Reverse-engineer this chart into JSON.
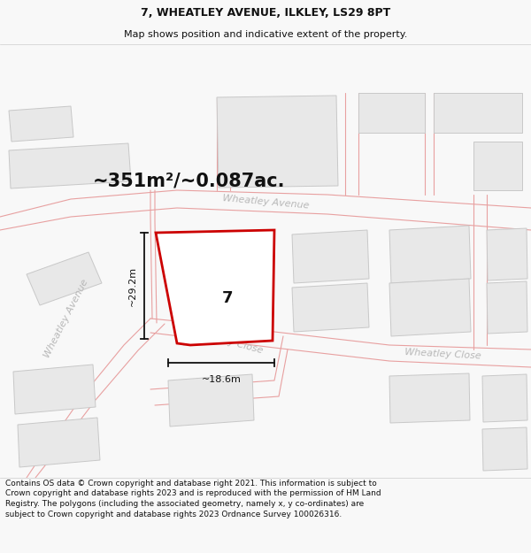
{
  "title_line1": "7, WHEATLEY AVENUE, ILKLEY, LS29 8PT",
  "title_line2": "Map shows position and indicative extent of the property.",
  "area_text": "~351m²/~0.087ac.",
  "property_number": "7",
  "dim_vertical": "~29.2m",
  "dim_horizontal": "~18.6m",
  "footer_text": "Contains OS data © Crown copyright and database right 2021. This information is subject to Crown copyright and database rights 2023 and is reproduced with the permission of HM Land Registry. The polygons (including the associated geometry, namely x, y co-ordinates) are subject to Crown copyright and database rights 2023 Ordnance Survey 100026316.",
  "bg_color": "#f8f8f8",
  "map_bg": "#f0eeee",
  "building_fill": "#e8e8e8",
  "building_edge": "#c8c8c8",
  "road_line_color": "#e8a0a0",
  "prop_fill": "#ffffff",
  "prop_edge": "#cc0000",
  "street_color": "#b8b8b8",
  "dim_color": "#111111",
  "text_color": "#111111",
  "title_fs": 9,
  "subtitle_fs": 8,
  "area_fs": 15,
  "propnum_fs": 13,
  "street_fs": 8,
  "footer_fs": 6.5,
  "dim_fs": 8
}
